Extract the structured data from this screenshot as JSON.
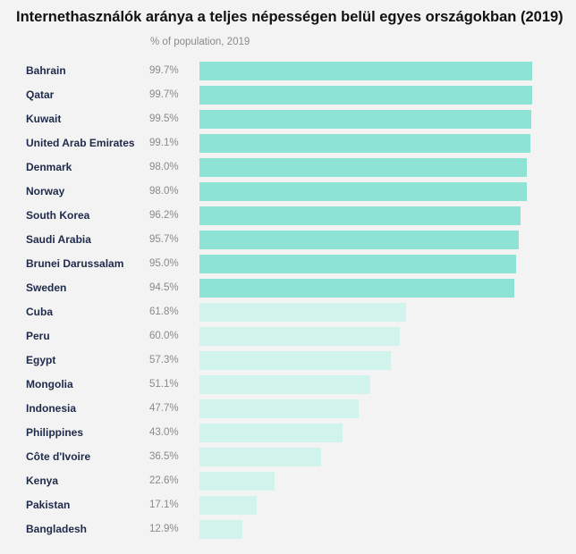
{
  "title": "Internethasználók aránya a teljes népességen belül egyes országokban (2019)",
  "subtitle": "% of population, 2019",
  "colors": {
    "bar_top": "#8de3d4",
    "bar_rest": "#d0f3ec",
    "background": "#f3f3f3"
  },
  "chart_data": {
    "type": "bar",
    "orientation": "horizontal",
    "title": "Internethasználók aránya a teljes népességen belül egyes országokban (2019)",
    "subtitle": "% of population, 2019",
    "xlim": [
      0,
      100
    ],
    "grid": false,
    "categories": [
      "Bahrain",
      "Qatar",
      "Kuwait",
      "United Arab Emirates",
      "Denmark",
      "Norway",
      "South Korea",
      "Saudi Arabia",
      "Brunei Darussalam",
      "Sweden",
      "Cuba",
      "Peru",
      "Egypt",
      "Mongolia",
      "Indonesia",
      "Philippines",
      "Côte d'Ivoire",
      "Kenya",
      "Pakistan",
      "Bangladesh"
    ],
    "values": [
      99.7,
      99.7,
      99.5,
      99.1,
      98.0,
      98.0,
      96.2,
      95.7,
      95.0,
      94.5,
      61.8,
      60.0,
      57.3,
      51.1,
      47.7,
      43.0,
      36.5,
      22.6,
      17.1,
      12.9
    ],
    "labels": [
      "99.7%",
      "99.7%",
      "99.5%",
      "99.1%",
      "98.0%",
      "98.0%",
      "96.2%",
      "95.7%",
      "95.0%",
      "94.5%",
      "61.8%",
      "60.0%",
      "57.3%",
      "51.1%",
      "47.7%",
      "43.0%",
      "36.5%",
      "22.6%",
      "17.1%",
      "12.9%"
    ],
    "highlighted_count": 10
  }
}
